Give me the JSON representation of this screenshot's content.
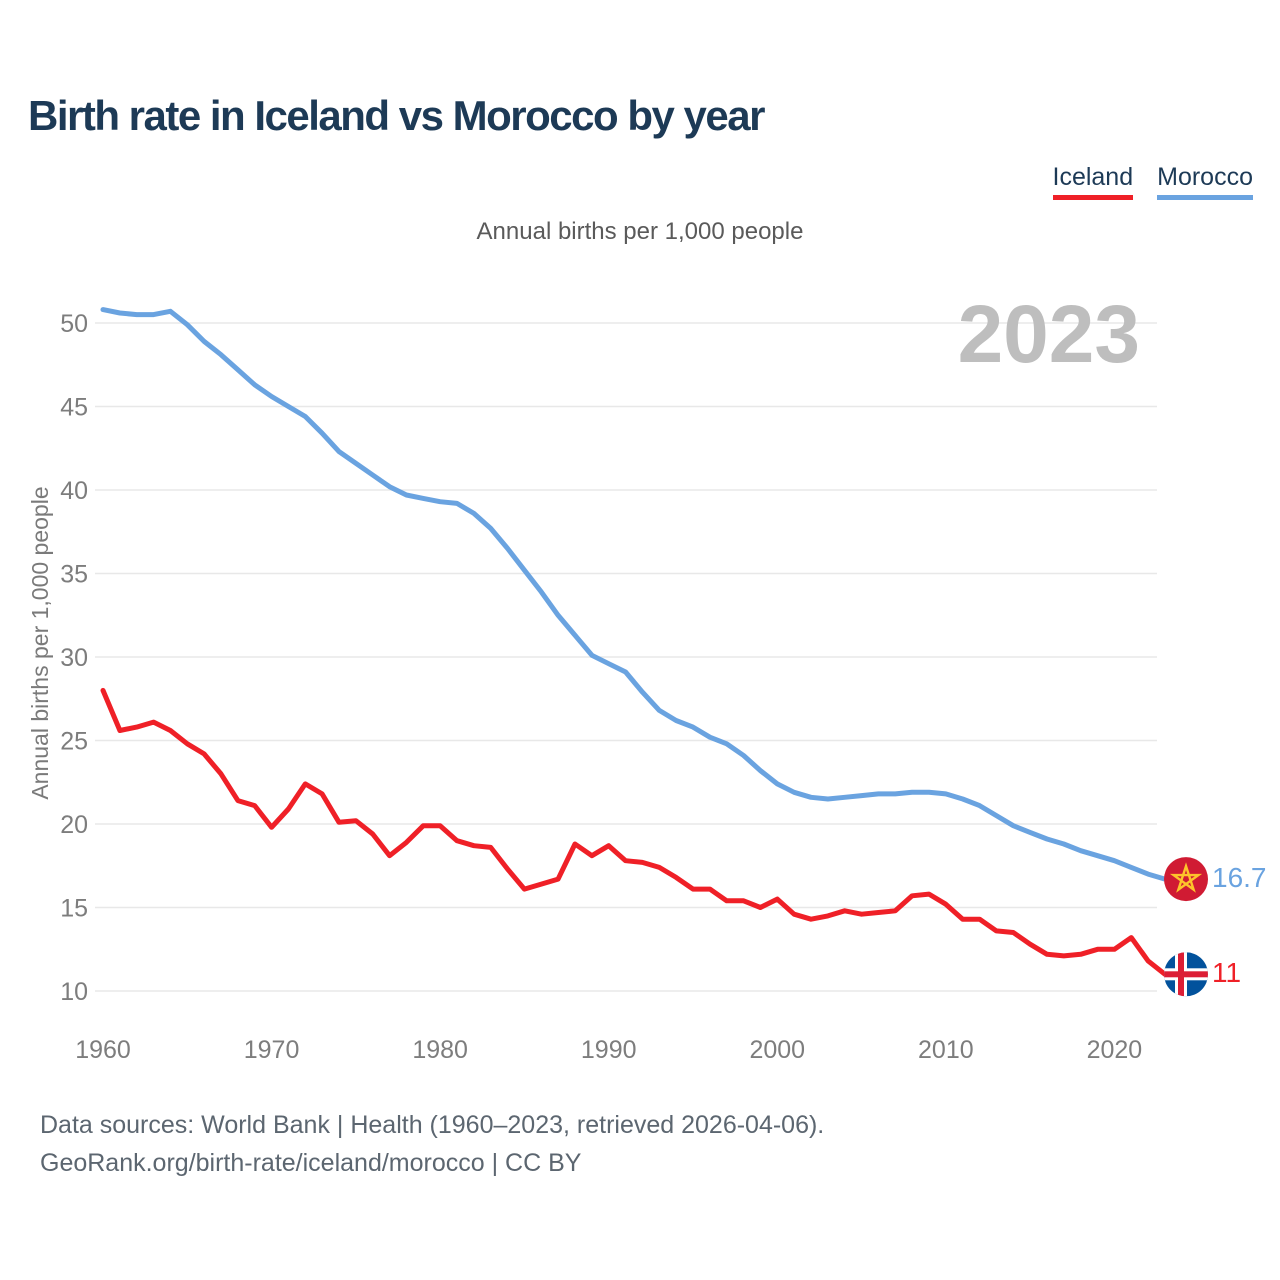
{
  "header": {
    "title": "Birth rate in Iceland vs Morocco by year",
    "legend": [
      {
        "label": "Iceland",
        "color": "#ef2027"
      },
      {
        "label": "Morocco",
        "color": "#6aa3e0"
      }
    ]
  },
  "subtitle": "Annual births per 1,000 people",
  "watermark": "2023",
  "axis": {
    "y_label": "Annual births per 1,000 people"
  },
  "footer": {
    "line1": "Data sources: World Bank | Health (1960–2023, retrieved 2026-04-06).",
    "line2": "GeoRank.org/birth-rate/iceland/morocco | CC BY"
  },
  "colors": {
    "title_navy": "#1d3a56",
    "iceland_red": "#ef2027",
    "morocco_blue": "#6aa3e0",
    "gridline": "#e8e8e8",
    "tick_label": "#7d7d7d",
    "subtitle_gray": "#5a5a5a",
    "footer_gray": "#5c6670",
    "watermark_gray": "#bebebe",
    "morocco_flag_red": "#d01b33",
    "morocco_flag_star": "#fdc42b",
    "iceland_flag_blue": "#02529c",
    "iceland_flag_red": "#dc1e35"
  },
  "chart_data": {
    "type": "line",
    "title": "Birth rate in Iceland vs Morocco by year",
    "unit_label": "Annual births per 1,000 people",
    "xlabel": "",
    "ylabel": "Annual births per 1,000 people",
    "grid": "horizontal",
    "legend_position": "top-right",
    "watermark": "2023",
    "ylim": [
      8.5,
      51.5
    ],
    "yticks": [
      10,
      15,
      20,
      25,
      30,
      35,
      40,
      45,
      50
    ],
    "xticks": [
      1960,
      1970,
      1980,
      1990,
      2000,
      2010,
      2020
    ],
    "x": [
      1960,
      1961,
      1962,
      1963,
      1964,
      1965,
      1966,
      1967,
      1968,
      1969,
      1970,
      1971,
      1972,
      1973,
      1974,
      1975,
      1976,
      1977,
      1978,
      1979,
      1980,
      1981,
      1982,
      1983,
      1984,
      1985,
      1986,
      1987,
      1988,
      1989,
      1990,
      1991,
      1992,
      1993,
      1994,
      1995,
      1996,
      1997,
      1998,
      1999,
      2000,
      2001,
      2002,
      2003,
      2004,
      2005,
      2006,
      2007,
      2008,
      2009,
      2010,
      2011,
      2012,
      2013,
      2014,
      2015,
      2016,
      2017,
      2018,
      2019,
      2020,
      2021,
      2022,
      2023
    ],
    "series": [
      {
        "name": "Iceland",
        "color": "#ef2027",
        "flag": "iceland",
        "end_label": "11",
        "values": [
          28.0,
          25.6,
          25.8,
          26.1,
          25.6,
          24.8,
          24.2,
          23.0,
          21.4,
          21.1,
          19.8,
          20.9,
          22.4,
          21.8,
          20.1,
          20.2,
          19.4,
          18.1,
          18.9,
          19.9,
          19.9,
          19.0,
          18.7,
          18.6,
          17.3,
          16.1,
          16.4,
          16.7,
          18.8,
          18.1,
          18.7,
          17.8,
          17.7,
          17.4,
          16.8,
          16.1,
          16.1,
          15.4,
          15.4,
          15.0,
          15.5,
          14.6,
          14.3,
          14.5,
          14.8,
          14.6,
          14.7,
          14.8,
          15.7,
          15.8,
          15.2,
          14.3,
          14.3,
          13.6,
          13.5,
          12.8,
          12.2,
          12.1,
          12.2,
          12.5,
          12.5,
          13.2,
          11.8,
          11.0
        ]
      },
      {
        "name": "Morocco",
        "color": "#6aa3e0",
        "flag": "morocco",
        "end_label": "16.7",
        "values": [
          50.8,
          50.6,
          50.5,
          50.5,
          50.7,
          49.9,
          48.9,
          48.1,
          47.2,
          46.3,
          45.6,
          45.0,
          44.4,
          43.4,
          42.3,
          41.6,
          40.9,
          40.2,
          39.7,
          39.5,
          39.3,
          39.2,
          38.6,
          37.7,
          36.5,
          35.2,
          33.9,
          32.5,
          31.3,
          30.1,
          29.6,
          29.1,
          27.9,
          26.8,
          26.2,
          25.8,
          25.2,
          24.8,
          24.1,
          23.2,
          22.4,
          21.9,
          21.6,
          21.5,
          21.6,
          21.7,
          21.8,
          21.8,
          21.9,
          21.9,
          21.8,
          21.5,
          21.1,
          20.5,
          19.9,
          19.5,
          19.1,
          18.8,
          18.4,
          18.1,
          17.8,
          17.4,
          17.0,
          16.7
        ]
      }
    ]
  }
}
